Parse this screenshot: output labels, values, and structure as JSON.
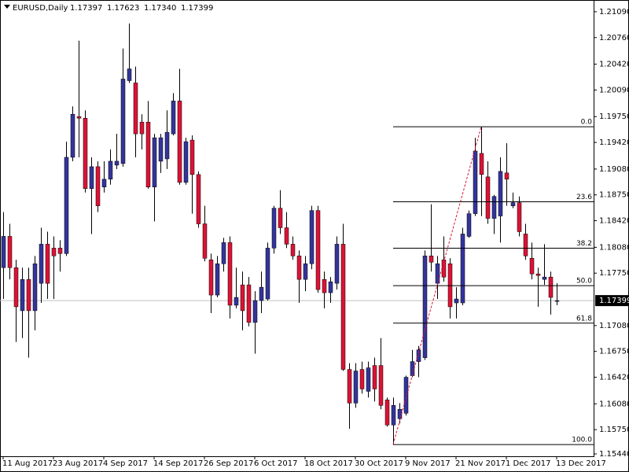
{
  "chart_data": {
    "type": "candlestick",
    "header": {
      "symbol": "EURUSD,Daily",
      "values": [
        "1.17397",
        "1.17623",
        "1.17340",
        "1.17399"
      ]
    },
    "categories": [
      "11 Aug 2017",
      null,
      null,
      null,
      null,
      null,
      null,
      null,
      "23 Aug 2017",
      null,
      null,
      null,
      null,
      null,
      null,
      null,
      "4 Sep 2017",
      null,
      null,
      null,
      null,
      null,
      null,
      null,
      "14 Sep 2017",
      null,
      null,
      null,
      null,
      null,
      null,
      null,
      "26 Sep 2017",
      null,
      null,
      null,
      null,
      null,
      null,
      null,
      "6 Oct 2017",
      null,
      null,
      null,
      null,
      null,
      null,
      null,
      "18 Oct 2017",
      null,
      null,
      null,
      null,
      null,
      null,
      null,
      "30 Oct 2017",
      null,
      null,
      null,
      null,
      null,
      null,
      null,
      "9 Nov 2017",
      null,
      null,
      null,
      null,
      null,
      null,
      null,
      "21 Nov 2017",
      null,
      null,
      null,
      null,
      null,
      null,
      null,
      "1 Dec 2017",
      null,
      null,
      null,
      null,
      null,
      null,
      null,
      "13 Dec 2017"
    ],
    "open": [
      1.1782,
      1.1822,
      1.1782,
      1.1727,
      1.1767,
      1.1727,
      1.1762,
      1.1812,
      1.1807,
      1.1807,
      1.18,
      1.1923,
      1.1975,
      1.1973,
      1.1883,
      1.1911,
      1.1885,
      1.1895,
      1.1913,
      1.1915,
      1.2021,
      1.2018,
      1.1968,
      1.1968,
      1.1885,
      1.1918,
      1.1921,
      1.1953,
      1.1995,
      1.1891,
      1.1945,
      1.1901,
      1.1838,
      1.1792,
      1.1747,
      1.1787,
      1.1814,
      1.1734,
      1.176,
      1.176,
      1.1712,
      1.174,
      1.1742,
      1.1807,
      1.1858,
      1.1833,
      1.1812,
      1.1797,
      1.1767,
      1.1787,
      1.1855,
      1.1767,
      1.175,
      1.1762,
      1.1812,
      1.1652,
      1.1609,
      1.1652,
      1.1624,
      1.1657,
      1.1657,
      1.1613,
      1.1581,
      1.1589,
      1.1596,
      1.1644,
      1.1662,
      1.1667,
      1.1797,
      1.1762,
      1.1792,
      1.1787,
      1.1737,
      1.1737,
      1.1822,
      1.1851,
      1.1928,
      1.1898,
      1.1845,
      1.1848,
      1.1903,
      1.1861,
      1.1865,
      1.1825,
      1.1794,
      1.1774,
      1.1767,
      1.177,
      1.17397
    ],
    "high": [
      1.1853,
      1.1838,
      1.1792,
      1.1782,
      1.1782,
      1.1797,
      1.1833,
      1.1828,
      1.1822,
      1.1817,
      1.1943,
      1.1988,
      1.2072,
      1.1983,
      1.1923,
      1.1918,
      1.1918,
      1.1933,
      1.1953,
      1.2062,
      1.2094,
      1.2039,
      1.1978,
      1.1995,
      1.1953,
      1.1953,
      1.1983,
      1.2005,
      1.2036,
      1.1948,
      1.1951,
      1.1905,
      1.1861,
      1.18,
      1.1797,
      1.182,
      1.1822,
      1.1782,
      1.1777,
      1.177,
      1.1752,
      1.1777,
      1.1814,
      1.1861,
      1.1881,
      1.1853,
      1.1822,
      1.1804,
      1.1797,
      1.1861,
      1.1861,
      1.1777,
      1.177,
      1.1822,
      1.1838,
      1.166,
      1.166,
      1.1662,
      1.1662,
      1.1667,
      1.1692,
      1.1616,
      1.1616,
      1.1609,
      1.1644,
      1.1677,
      1.1682,
      1.1804,
      1.1863,
      1.1797,
      1.1822,
      1.1794,
      1.1757,
      1.1833,
      1.1855,
      1.1948,
      1.1962,
      1.1918,
      1.1875,
      1.1923,
      1.1941,
      1.1878,
      1.1873,
      1.1838,
      1.1814,
      1.1782,
      1.1812,
      1.1777,
      1.17623
    ],
    "low": [
      1.1742,
      1.1767,
      1.1687,
      1.1692,
      1.1667,
      1.1702,
      1.1737,
      1.1742,
      1.1742,
      1.1777,
      1.1797,
      1.1918,
      1.1923,
      1.1878,
      1.1825,
      1.1853,
      1.1878,
      1.1888,
      1.1908,
      1.1911,
      1.2018,
      1.1923,
      1.1933,
      1.1883,
      1.1841,
      1.1903,
      1.1908,
      1.1951,
      1.1888,
      1.1888,
      1.1851,
      1.1833,
      1.179,
      1.1724,
      1.1744,
      1.1777,
      1.1717,
      1.173,
      1.1702,
      1.1707,
      1.1672,
      1.1724,
      1.174,
      1.18,
      1.1825,
      1.1807,
      1.1792,
      1.1737,
      1.1752,
      1.178,
      1.175,
      1.173,
      1.1737,
      1.1754,
      1.165,
      1.1576,
      1.1603,
      1.1621,
      1.1616,
      1.1611,
      1.1601,
      1.1579,
      1.1556,
      1.1583,
      1.1593,
      1.1642,
      1.1642,
      1.1664,
      1.1777,
      1.1742,
      1.1764,
      1.1717,
      1.1717,
      1.1734,
      1.182,
      1.1848,
      1.1848,
      1.1838,
      1.1825,
      1.1814,
      1.1861,
      1.1858,
      1.1822,
      1.1792,
      1.1767,
      1.1732,
      1.176,
      1.1722,
      1.1734
    ],
    "close": [
      1.1822,
      1.1782,
      1.1732,
      1.1767,
      1.1727,
      1.1787,
      1.1812,
      1.1762,
      1.1797,
      1.18,
      1.1923,
      1.1978,
      1.1973,
      1.1883,
      1.1911,
      1.1861,
      1.1895,
      1.1918,
      1.1918,
      1.2023,
      1.2036,
      1.1953,
      1.1953,
      1.1885,
      1.1948,
      1.1948,
      1.1955,
      1.1995,
      1.1891,
      1.1943,
      1.1901,
      1.1838,
      1.1794,
      1.1747,
      1.1787,
      1.1814,
      1.1734,
      1.1744,
      1.1727,
      1.1712,
      1.174,
      1.1757,
      1.1807,
      1.1858,
      1.1833,
      1.1812,
      1.1797,
      1.1767,
      1.1787,
      1.1855,
      1.1754,
      1.175,
      1.1764,
      1.1812,
      1.1652,
      1.1609,
      1.165,
      1.1627,
      1.1654,
      1.1627,
      1.1606,
      1.1581,
      1.1606,
      1.1601,
      1.1642,
      1.1662,
      1.1677,
      1.1797,
      1.1789,
      1.1787,
      1.177,
      1.1732,
      1.1742,
      1.1825,
      1.1851,
      1.1931,
      1.1901,
      1.1845,
      1.1873,
      1.1905,
      1.1895,
      1.1865,
      1.1828,
      1.1797,
      1.1774,
      1.1772,
      1.177,
      1.1744,
      1.17399
    ],
    "up_color": "#34349c",
    "down_color": "#dd1236",
    "wick_color": "#000000",
    "last_price": {
      "value": 1.17399,
      "label": "1.17399"
    },
    "fibonacci": {
      "color": "#000000",
      "trend_color": "#dd1236",
      "levels": [
        {
          "value": 1.1962,
          "label": "0.0"
        },
        {
          "value": 1.18662,
          "label": "23.6"
        },
        {
          "value": 1.18069,
          "label": "38.2"
        },
        {
          "value": 1.1759,
          "label": "50.0"
        },
        {
          "value": 1.17111,
          "label": "61.8"
        },
        {
          "value": 1.1556,
          "label": "100.0"
        }
      ]
    },
    "ylim": [
      1.1541,
      1.2124
    ],
    "yticks": [
      {
        "value": 1.2109,
        "label": "1.21090"
      },
      {
        "value": 1.2076,
        "label": "1.20760"
      },
      {
        "value": 1.2042,
        "label": "1.20420"
      },
      {
        "value": 1.2009,
        "label": "1.20090"
      },
      {
        "value": 1.1975,
        "label": "1.19750"
      },
      {
        "value": 1.1942,
        "label": "1.19420"
      },
      {
        "value": 1.1908,
        "label": "1.19080"
      },
      {
        "value": 1.1875,
        "label": "1.18750"
      },
      {
        "value": 1.1842,
        "label": "1.18420"
      },
      {
        "value": 1.1808,
        "label": "1.18080"
      },
      {
        "value": 1.1775,
        "label": "1.17750"
      },
      {
        "value": 1.1708,
        "label": "1.17080"
      },
      {
        "value": 1.1675,
        "label": "1.16750"
      },
      {
        "value": 1.1642,
        "label": "1.16420"
      },
      {
        "value": 1.1608,
        "label": "1.16080"
      },
      {
        "value": 1.1575,
        "label": "1.15750"
      },
      {
        "value": 1.1544,
        "label": "1.15440"
      }
    ]
  }
}
